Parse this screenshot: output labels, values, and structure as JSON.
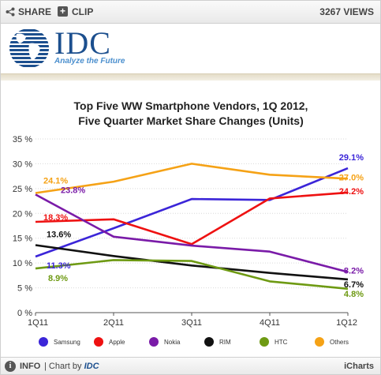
{
  "toolbar": {
    "share_label": "SHARE",
    "clip_label": "CLIP",
    "views": "3267 VIEWS"
  },
  "logo": {
    "brand": "IDC",
    "tagline": "Analyze the Future"
  },
  "footer": {
    "info_label": "INFO",
    "chart_by_prefix": "| Chart by",
    "chart_by_brand": "IDC",
    "icharts": "iCharts"
  },
  "colors": {
    "Samsung": "#3b25d8",
    "Apple": "#ee1111",
    "Nokia": "#7a1ba8",
    "RIM": "#111111",
    "HTC": "#6e9a13",
    "Others": "#f5a216"
  },
  "chart_data": {
    "type": "line",
    "title": "Top Five WW Smartphone Vendors, 1Q 2012,",
    "subtitle": "Five Quarter Market Share Changes (Units)",
    "categories": [
      "1Q11",
      "2Q11",
      "3Q11",
      "4Q11",
      "1Q12"
    ],
    "ylim": [
      0,
      35
    ],
    "yticks": [
      0,
      5,
      10,
      15,
      20,
      25,
      30,
      35
    ],
    "ytick_labels": [
      "0 %",
      "5 %",
      "10 %",
      "15 %",
      "20 %",
      "25 %",
      "30 %",
      "35 %"
    ],
    "grid": true,
    "legend_position": "bottom",
    "series": [
      {
        "name": "Samsung",
        "values": [
          11.3,
          17.0,
          22.9,
          22.7,
          29.1
        ],
        "first_label": "11.3%",
        "last_label": "29.1%"
      },
      {
        "name": "Apple",
        "values": [
          18.3,
          18.8,
          13.8,
          23.0,
          24.2
        ],
        "first_label": "18.3%",
        "last_label": "24.2%"
      },
      {
        "name": "Nokia",
        "values": [
          23.8,
          15.3,
          13.5,
          12.3,
          8.2
        ],
        "first_label": "23.8%",
        "last_label": "8.2%"
      },
      {
        "name": "RIM",
        "values": [
          13.6,
          11.4,
          9.5,
          8.0,
          6.7
        ],
        "first_label": "13.6%",
        "last_label": "6.7%"
      },
      {
        "name": "HTC",
        "values": [
          8.9,
          10.6,
          10.4,
          6.3,
          4.8
        ],
        "first_label": "8.9%",
        "last_label": "4.8%"
      },
      {
        "name": "Others",
        "values": [
          24.1,
          26.4,
          30.0,
          27.8,
          27.0
        ],
        "first_label": "24.1%",
        "last_label": "27.0%"
      }
    ]
  }
}
